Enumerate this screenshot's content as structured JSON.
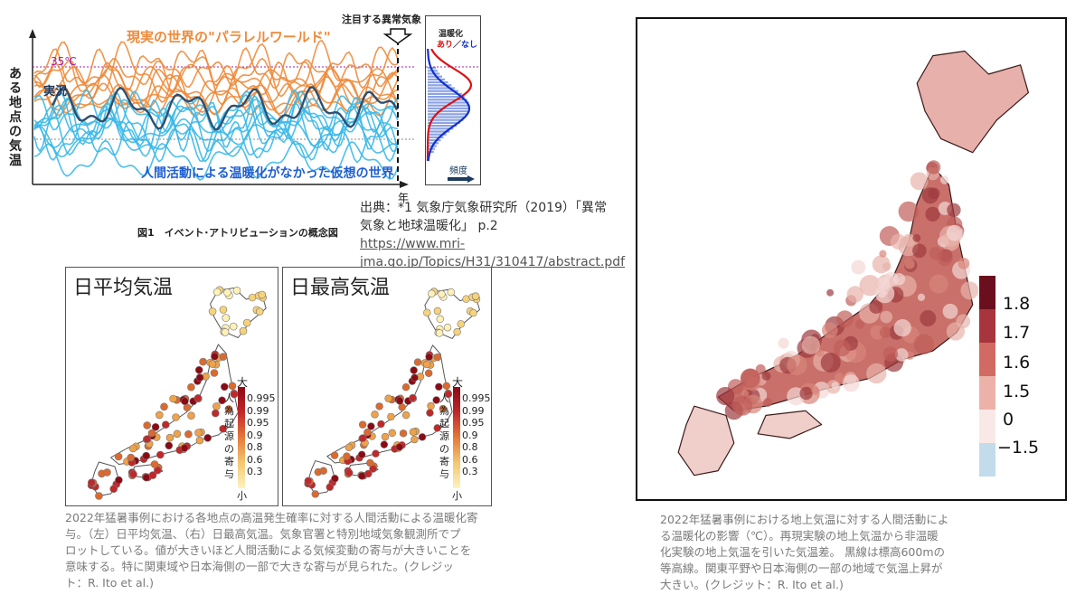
{
  "concept_figure": {
    "parallel_world_label": "現実の世界の\"パラレルワールド\"",
    "observed_label": "実況",
    "temp_line_label": "35℃",
    "y_axis_label": "ある地点の気温",
    "counterfactual_label": "人間活動による温暖化がなかった仮想の世界",
    "event_label": "注目する異常気象",
    "x_axis_label": "年",
    "dist_legend_title": "温暖化",
    "dist_legend_with": "あり",
    "dist_legend_sep": "／",
    "dist_legend_without": "なし",
    "dist_x_label": "頻度",
    "caption": "図1　イベント･アトリビューションの概念図",
    "colors": {
      "parallel": "#ee8a3a",
      "counterfactual": "#3ab8e8",
      "observed": "#2f4f6f",
      "with_warming": "#e01010",
      "without_warming": "#1030d0",
      "threshold": "#a020a0"
    }
  },
  "source": {
    "line1": "出典：*1 気象庁気象研究所（2019）「異常",
    "line2": "気象と地球温暖化」 p.2",
    "url_line1": "https://www.mri-",
    "url_line2": "jma.go.jp/Topics/H31/310417/abstract.pdf"
  },
  "left_maps": {
    "panel1_title": "日平均気温",
    "panel2_title": "日最高気温",
    "scale_top": "大",
    "scale_bottom": "小",
    "scale_side": "人為起源の寄与",
    "scale_values": [
      "0.995",
      "0.99",
      "0.95",
      "0.9",
      "0.8",
      "0.6",
      "0.3"
    ],
    "caption_lines": [
      "2022年猛暑事例における各地点の高温発生確率に対する人間活動による温暖化寄",
      "与。（左）日平均気温、（右）日最高気温。気象官署と特別地域気象観測所でプ",
      "ロットしている。値が大きいほど人間活動による気候変動の寄与が大きいことを",
      "意味する。特に関東域や日本海側の一部で大きな寄与が見られた。(クレジッ",
      "ト：R. Ito et al.)"
    ]
  },
  "right_map": {
    "colorbar_values": [
      "1.8",
      "1.7",
      "1.6",
      "1.5",
      "0",
      "−1.5"
    ],
    "caption_lines": [
      "2022年猛暑事例における地上気温に対する人間活動によ",
      "る温暖化の影響（℃）。再現実験の地上気温から非温暖",
      "化実験の地上気温を引いた気温差。 黒線は標高600mの",
      "等高線。関東平野や日本海側の一部の地域で気温上昇が",
      "大きい。(クレジット：R. Ito et al.)"
    ]
  }
}
